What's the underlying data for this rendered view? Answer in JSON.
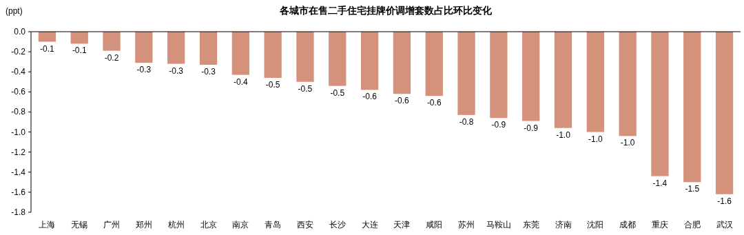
{
  "chart_data": {
    "type": "bar",
    "title": "各城市在售二手住宅挂牌价调增套数占比环比变化",
    "ylabel": "(ppt)",
    "categories": [
      "上海",
      "无锡",
      "广州",
      "郑州",
      "杭州",
      "北京",
      "南京",
      "青岛",
      "西安",
      "长沙",
      "大连",
      "天津",
      "咸阳",
      "苏州",
      "马鞍山",
      "东莞",
      "济南",
      "沈阳",
      "成都",
      "重庆",
      "合肥",
      "武汉"
    ],
    "values": [
      -0.1,
      -0.12,
      -0.19,
      -0.31,
      -0.32,
      -0.33,
      -0.43,
      -0.46,
      -0.5,
      -0.54,
      -0.58,
      -0.62,
      -0.64,
      -0.83,
      -0.86,
      -0.89,
      -0.96,
      -1.0,
      -1.04,
      -1.44,
      -1.5,
      -1.62
    ],
    "value_labels": [
      "-0.1",
      "-0.1",
      "-0.2",
      "-0.3",
      "-0.3",
      "-0.3",
      "-0.4",
      "-0.5",
      "-0.5",
      "-0.5",
      "-0.6",
      "-0.6",
      "-0.6",
      "-0.8",
      "-0.9",
      "-0.9",
      "-1.0",
      "-1.0",
      "-1.0",
      "-1.4",
      "-1.5",
      "-1.6"
    ],
    "color": "#d4917b",
    "ylim": [
      -1.8,
      0
    ],
    "yticks": [
      {
        "value": -1.8,
        "label": "-1.8"
      },
      {
        "value": -1.6,
        "label": "-1.6"
      },
      {
        "value": -1.4,
        "label": "-1.4"
      },
      {
        "value": -1.2,
        "label": "-1.2"
      },
      {
        "value": -1,
        "label": "-1.0"
      },
      {
        "value": -0.8,
        "label": "-0.8"
      },
      {
        "value": -0.6,
        "label": "-0.6"
      },
      {
        "value": -0.4,
        "label": "-0.4"
      },
      {
        "value": -0.2,
        "label": "-0.2"
      },
      {
        "value": 0,
        "label": "0.0"
      }
    ]
  }
}
